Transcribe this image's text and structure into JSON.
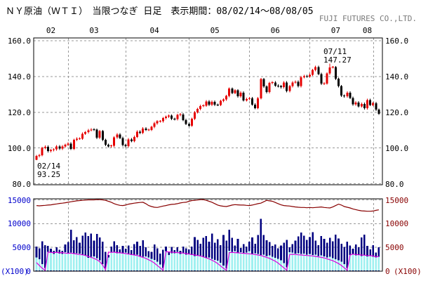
{
  "header": {
    "title": "ＮＹ原油（ＷＴＩ）　当限つなぎ 日足　表示期間：08/02/14～08/08/05",
    "company": "FUJI FUTURES CO.,LTD."
  },
  "annotations": {
    "start_date": "02/14",
    "start_value": "93.25",
    "peak_date": "07/11",
    "peak_value": "147.27"
  },
  "colors": {
    "up_candle": "#e60000",
    "down_candle": "#000000",
    "grid": "#999999",
    "border": "#000000",
    "volume_bar": "#000080",
    "front_volume_bar": "#9ff0f0",
    "front_oi_line": "#dd00dd",
    "total_oi_line": "#880000",
    "left_axis": "#0000cc",
    "right_axis": "#880000"
  },
  "chart_data": [
    {
      "type": "candlestick",
      "title": "NY Crude Oil (WTI) front-month continuation, daily",
      "ylim": [
        80,
        160
      ],
      "yticks": [
        "160.0",
        "140.0",
        "120.0",
        "100.0",
        "80.0"
      ],
      "grid": "dashed",
      "x_months": [
        {
          "label": "02",
          "index": 5
        },
        {
          "label": "03",
          "index": 20
        },
        {
          "label": "04",
          "index": 41
        },
        {
          "label": "05",
          "index": 62
        },
        {
          "label": "06",
          "index": 83
        },
        {
          "label": "07",
          "index": 104
        },
        {
          "label": "08",
          "index": 115
        }
      ],
      "month_gridline_indices": [
        11,
        31,
        53,
        74,
        95,
        117
      ],
      "first": {
        "open": 93.4,
        "low": 93.25
      },
      "peak": {
        "index": 102,
        "high": 147.27
      },
      "closes": [
        95.5,
        96.0,
        100.0,
        100.7,
        98.2,
        98.8,
        99.2,
        100.9,
        99.6,
        100.9,
        101.8,
        102.5,
        99.5,
        104.5,
        105.2,
        105.2,
        108.0,
        108.8,
        109.9,
        110.3,
        110.2,
        105.7,
        109.4,
        104.5,
        101.8,
        100.9,
        101.2,
        105.9,
        107.6,
        105.6,
        101.6,
        101.0,
        104.8,
        103.8,
        106.2,
        109.1,
        108.5,
        110.9,
        110.1,
        110.1,
        111.8,
        113.8,
        114.9,
        114.9,
        116.7,
        117.5,
        118.1,
        116.3,
        116.1,
        118.5,
        118.8,
        115.6,
        113.5,
        112.5,
        116.3,
        120.0,
        121.8,
        123.5,
        123.7,
        126.0,
        124.2,
        125.8,
        124.2,
        124.1,
        126.3,
        127.1,
        129.1,
        133.2,
        130.8,
        132.2,
        128.9,
        131.0,
        126.6,
        127.4,
        127.8,
        124.3,
        122.3,
        127.8,
        138.5,
        134.4,
        131.3,
        136.4,
        136.7,
        134.9,
        134.6,
        134.0,
        136.7,
        131.9,
        134.6,
        136.7,
        137.0,
        134.6,
        139.6,
        140.2,
        140.0,
        141.0,
        143.6,
        145.3,
        141.4,
        136.0,
        136.1,
        141.7,
        145.1,
        145.2,
        138.7,
        134.6,
        129.3,
        128.9,
        131.0,
        128.0,
        124.4,
        125.5,
        123.3,
        124.7,
        122.2,
        126.8,
        124.1,
        125.1,
        121.4,
        119.2
      ]
    },
    {
      "type": "bar",
      "title": "Volume and open interest (X100)",
      "ylim": [
        0,
        15000
      ],
      "yticks": [
        "15000",
        "10000",
        "5000",
        "0"
      ],
      "unit": "(X100)",
      "grid": "dashed",
      "series": [
        {
          "name": "volume",
          "type": "bar",
          "values": [
            5200,
            4800,
            6300,
            5500,
            5300,
            4700,
            4300,
            5000,
            4500,
            4300,
            5600,
            6100,
            8700,
            6500,
            7200,
            6000,
            7500,
            8100,
            7400,
            7900,
            6400,
            7800,
            7100,
            6200,
            4100,
            3400,
            5200,
            6300,
            5500,
            4600,
            5300,
            4700,
            5400,
            4400,
            5700,
            6200,
            5300,
            6500,
            5000,
            4200,
            4100,
            5600,
            4800,
            3700,
            4500,
            5200,
            4000,
            5100,
            4400,
            5000,
            4300,
            5200,
            4800,
            4600,
            5200,
            7200,
            6600,
            5800,
            7000,
            7400,
            6200,
            7900,
            6000,
            6700,
            5500,
            7600,
            6400,
            8700,
            7000,
            5400,
            6800,
            4900,
            5700,
            5200,
            6200,
            7100,
            5800,
            7600,
            11000,
            7600,
            6500,
            6100,
            5300,
            5600,
            4800,
            5400,
            6000,
            6600,
            5000,
            5700,
            6400,
            7300,
            8100,
            7500,
            6600,
            7200,
            8200,
            6400,
            5500,
            7400,
            6800,
            6000,
            7000,
            6300,
            7700,
            6900,
            5800,
            5100,
            6200,
            5400,
            4700,
            5600,
            5000,
            7100,
            7700,
            5300,
            4600,
            5500,
            3900,
            5000
          ]
        },
        {
          "name": "front-month-volume",
          "type": "bar",
          "values": [
            2900,
            2500,
            1500,
            700,
            4100,
            3900,
            3800,
            4000,
            3700,
            3900,
            4000,
            3800,
            3900,
            3600,
            3800,
            3700,
            3500,
            3300,
            2800,
            3000,
            3100,
            2700,
            2300,
            1500,
            700,
            4000,
            4100,
            3900,
            3800,
            4000,
            3700,
            3900,
            3600,
            3400,
            3300,
            3500,
            3200,
            3000,
            3100,
            2900,
            2600,
            2400,
            2000,
            1400,
            700,
            4200,
            4000,
            3800,
            3900,
            4100,
            3700,
            3800,
            3500,
            3600,
            3400,
            3200,
            3300,
            3100,
            3000,
            2800,
            2900,
            2600,
            2400,
            2200,
            1800,
            1200,
            600,
            4300,
            4100,
            4200,
            3900,
            4000,
            3800,
            3900,
            4200,
            3700,
            3800,
            3600,
            3400,
            3500,
            3200,
            3300,
            3000,
            2800,
            2600,
            2300,
            1700,
            800,
            4000,
            3900,
            3700,
            3800,
            3600,
            3700,
            3500,
            3600,
            3400,
            3500,
            3200,
            3300,
            3100,
            2900,
            3000,
            2700,
            2500,
            2300,
            2000,
            1500,
            700,
            3400,
            3600,
            3300,
            3500,
            3200,
            3400,
            3100,
            3300,
            3000,
            2900,
            3000
          ]
        },
        {
          "name": "front-month-open-interest",
          "type": "line",
          "values": [
            1800,
            1200,
            600,
            200,
            4000,
            3950,
            3900,
            3980,
            3850,
            3900,
            3800,
            3750,
            3800,
            3700,
            3600,
            3500,
            3450,
            3300,
            3100,
            2900,
            2700,
            2400,
            2000,
            1300,
            300,
            4000,
            3950,
            4000,
            3900,
            3850,
            3800,
            3700,
            3600,
            3500,
            3400,
            3300,
            3100,
            2900,
            2700,
            2400,
            2100,
            1700,
            1200,
            700,
            200,
            4100,
            4050,
            4000,
            3950,
            3900,
            3850,
            3800,
            3700,
            3600,
            3500,
            3400,
            3300,
            3200,
            3000,
            2800,
            2600,
            2300,
            2000,
            1600,
            1100,
            600,
            200,
            3900,
            3950,
            3900,
            3850,
            3800,
            3750,
            3700,
            3650,
            3600,
            3500,
            3400,
            3300,
            3100,
            2900,
            2700,
            2400,
            2100,
            1700,
            1200,
            700,
            200,
            3500,
            3550,
            3500,
            3450,
            3400,
            3350,
            3300,
            3250,
            3200,
            3100,
            3000,
            2900,
            2800,
            2600,
            2400,
            2200,
            1900,
            1600,
            1200,
            700,
            200,
            3400,
            3600,
            3500,
            3450,
            3400,
            3350,
            3300,
            3250,
            3200,
            3000,
            3100
          ]
        },
        {
          "name": "total-open-interest",
          "type": "line",
          "values": [
            13800,
            13750,
            13800,
            13850,
            13900,
            13950,
            14050,
            14150,
            14250,
            14300,
            14400,
            14500,
            14600,
            14700,
            14800,
            14850,
            14900,
            14950,
            15000,
            15000,
            15000,
            15050,
            15050,
            15000,
            14900,
            14700,
            14500,
            14200,
            14000,
            13850,
            13800,
            13900,
            14100,
            14200,
            14300,
            14400,
            14450,
            14500,
            14200,
            13800,
            13600,
            13450,
            13400,
            13550,
            13700,
            13800,
            13950,
            14050,
            14100,
            14200,
            14350,
            14450,
            14500,
            14700,
            14850,
            14900,
            14975,
            15050,
            15050,
            14900,
            14700,
            14500,
            14200,
            13900,
            13750,
            13650,
            13600,
            13750,
            13900,
            14000,
            13950,
            13900,
            13900,
            13850,
            13800,
            13900,
            14050,
            14200,
            14300,
            14600,
            14900,
            14800,
            14700,
            14450,
            14200,
            13950,
            13800,
            13750,
            13700,
            13600,
            13500,
            13450,
            13400,
            13400,
            13350,
            13400,
            13350,
            13400,
            13450,
            13500,
            13400,
            13350,
            13300,
            13500,
            13800,
            14100,
            13900,
            13600,
            13450,
            13300,
            13100,
            12950,
            12800,
            12700,
            12650,
            12600,
            12600,
            12650,
            12800,
            12900
          ]
        }
      ]
    }
  ]
}
